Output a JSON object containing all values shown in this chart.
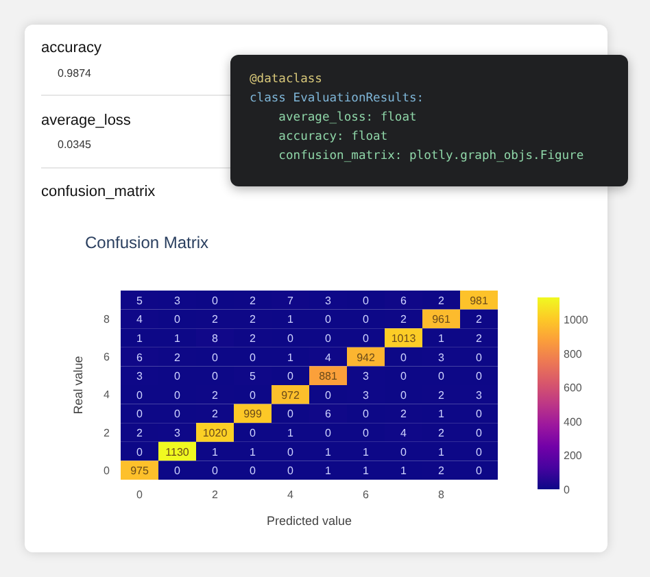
{
  "chart_data": {
    "type": "heatmap",
    "title": "Confusion Matrix",
    "xlabel": "Predicted value",
    "ylabel": "Real value",
    "annotations": [
      "accuracy",
      "0.9874",
      "average_loss",
      "0.0345",
      "confusion_matrix",
      "@dataclass",
      "class EvaluationResults:",
      "    average_loss: float",
      "    accuracy: float",
      "    confusion_matrix: plotly.graph_objs.Figure"
    ],
    "categories": [
      "0",
      null,
      "2",
      null,
      "4",
      null,
      "6",
      null,
      "8",
      null
    ],
    "y_categories": [
      null,
      "8",
      null,
      "6",
      null,
      "4",
      null,
      "2",
      null,
      "0"
    ],
    "cells": [
      [
        5,
        3,
        0,
        2,
        7,
        3,
        0,
        6,
        2,
        981
      ],
      [
        4,
        0,
        2,
        2,
        1,
        0,
        0,
        2,
        961,
        2
      ],
      [
        1,
        1,
        8,
        2,
        0,
        0,
        0,
        1013,
        1,
        2
      ],
      [
        6,
        2,
        0,
        0,
        1,
        4,
        942,
        0,
        3,
        0
      ],
      [
        3,
        0,
        0,
        5,
        0,
        881,
        3,
        0,
        0,
        0
      ],
      [
        0,
        0,
        2,
        0,
        972,
        0,
        3,
        0,
        2,
        3
      ],
      [
        0,
        0,
        2,
        999,
        0,
        6,
        0,
        2,
        1,
        0
      ],
      [
        2,
        3,
        1020,
        0,
        1,
        0,
        0,
        4,
        2,
        0
      ],
      [
        0,
        1130,
        1,
        1,
        0,
        1,
        1,
        0,
        1,
        0
      ],
      [
        975,
        0,
        0,
        0,
        0,
        1,
        1,
        1,
        2,
        0
      ]
    ],
    "clim": [
      0,
      1130
    ],
    "cticks": [
      0,
      200,
      400,
      600,
      800,
      1000
    ],
    "data_labels": true
  }
}
